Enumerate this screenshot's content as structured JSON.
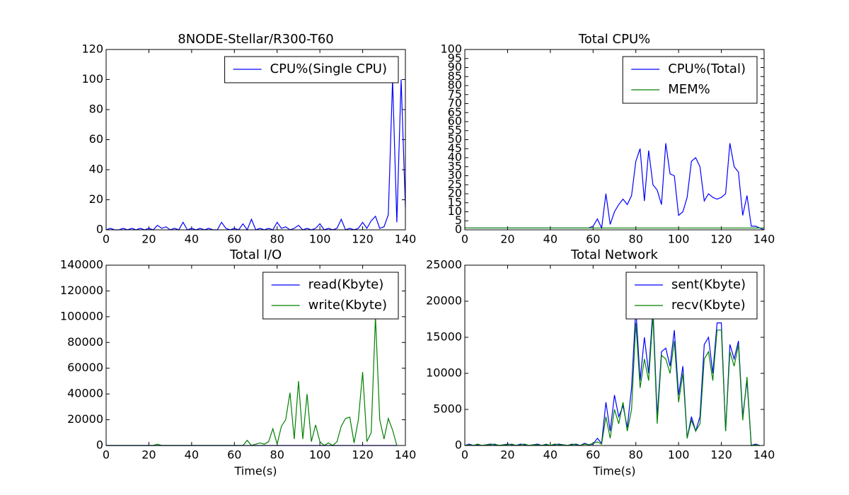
{
  "chart_data": [
    {
      "type": "line",
      "title": "8NODE-Stellar/R300-T60",
      "legend": "upper right",
      "x": [
        0,
        2,
        4,
        6,
        8,
        10,
        12,
        14,
        16,
        18,
        20,
        22,
        24,
        26,
        28,
        30,
        32,
        34,
        36,
        38,
        40,
        42,
        44,
        46,
        48,
        50,
        52,
        54,
        56,
        58,
        60,
        62,
        64,
        66,
        68,
        70,
        72,
        74,
        76,
        78,
        80,
        82,
        84,
        86,
        88,
        90,
        92,
        94,
        96,
        98,
        100,
        102,
        104,
        106,
        108,
        110,
        112,
        114,
        116,
        118,
        120,
        122,
        124,
        126,
        128,
        130,
        132,
        134,
        136,
        138,
        140
      ],
      "series": [
        {
          "name": "CPU%(Single CPU)",
          "color": "#0000ff",
          "values": [
            0,
            1,
            0,
            0,
            1,
            0,
            1,
            0,
            1,
            0,
            1,
            0,
            3,
            1,
            2,
            0,
            1,
            0,
            5,
            0,
            1,
            0,
            1,
            0,
            1,
            0,
            0,
            5,
            1,
            0,
            1,
            0,
            4,
            0,
            7,
            0,
            1,
            0,
            1,
            0,
            5,
            1,
            2,
            0,
            1,
            3,
            0,
            1,
            0,
            1,
            4,
            0,
            1,
            0,
            1,
            7,
            0,
            1,
            0,
            1,
            5,
            1,
            6,
            9,
            1,
            2,
            10,
            100,
            5,
            100,
            15
          ]
        }
      ],
      "xlim": [
        0,
        140
      ],
      "xticks": [
        0,
        20,
        40,
        60,
        80,
        100,
        120,
        140
      ],
      "ylim": [
        0,
        120
      ],
      "yticks": [
        0,
        20,
        40,
        60,
        80,
        100,
        120
      ]
    },
    {
      "type": "line",
      "title": "Total CPU%",
      "legend": "upper right",
      "x": [
        0,
        2,
        4,
        6,
        8,
        10,
        12,
        14,
        16,
        18,
        20,
        22,
        24,
        26,
        28,
        30,
        32,
        34,
        36,
        38,
        40,
        42,
        44,
        46,
        48,
        50,
        52,
        54,
        56,
        58,
        60,
        62,
        64,
        66,
        68,
        70,
        72,
        74,
        76,
        78,
        80,
        82,
        84,
        86,
        88,
        90,
        92,
        94,
        96,
        98,
        100,
        102,
        104,
        106,
        108,
        110,
        112,
        114,
        116,
        118,
        120,
        122,
        124,
        126,
        128,
        130,
        132,
        134,
        136,
        138,
        140
      ],
      "series": [
        {
          "name": "CPU%(Total)",
          "color": "#0000ff",
          "values": [
            1,
            1,
            1,
            1,
            1,
            1,
            1,
            1,
            1,
            1,
            1,
            1,
            1,
            1,
            1,
            1,
            1,
            1,
            1,
            1,
            1,
            1,
            1,
            1,
            1,
            1,
            1,
            1,
            1,
            1,
            2,
            6,
            1,
            20,
            3,
            10,
            14,
            17,
            14,
            19,
            38,
            45,
            16,
            44,
            25,
            22,
            14,
            48,
            31,
            30,
            8,
            10,
            18,
            38,
            40,
            35,
            16,
            20,
            18,
            17,
            18,
            20,
            48,
            35,
            32,
            8,
            19,
            2,
            2,
            1,
            0
          ]
        },
        {
          "name": "MEM%",
          "color": "#008000",
          "values": [
            1,
            1,
            1,
            1,
            1,
            1,
            1,
            1,
            1,
            1,
            1,
            1,
            1,
            1,
            1,
            1,
            1,
            1,
            1,
            1,
            1,
            1,
            1,
            1,
            1,
            1,
            1,
            1,
            1,
            1,
            1,
            1,
            1,
            1,
            1,
            1,
            1,
            1,
            1,
            1,
            1,
            1,
            1,
            1,
            1,
            1,
            1,
            1,
            1,
            1,
            1,
            1,
            1,
            1,
            1,
            1,
            1,
            1,
            1,
            1,
            1,
            1,
            1,
            1,
            1,
            1,
            1,
            1,
            1,
            1,
            1
          ]
        }
      ],
      "xlim": [
        0,
        140
      ],
      "xticks": [
        0,
        20,
        40,
        60,
        80,
        100,
        120,
        140
      ],
      "ylim": [
        0,
        100
      ],
      "yticks": [
        0,
        5,
        10,
        15,
        20,
        25,
        30,
        35,
        40,
        45,
        50,
        55,
        60,
        65,
        70,
        75,
        80,
        85,
        90,
        95,
        100
      ]
    },
    {
      "type": "line",
      "title": "Total I/O",
      "xlabel": "Time(s)",
      "legend": "upper right",
      "x": [
        0,
        2,
        4,
        6,
        8,
        10,
        12,
        14,
        16,
        18,
        20,
        22,
        24,
        26,
        28,
        30,
        32,
        34,
        36,
        38,
        40,
        42,
        44,
        46,
        48,
        50,
        52,
        54,
        56,
        58,
        60,
        62,
        64,
        66,
        68,
        70,
        72,
        74,
        76,
        78,
        80,
        82,
        84,
        86,
        88,
        90,
        92,
        94,
        96,
        98,
        100,
        102,
        104,
        106,
        108,
        110,
        112,
        114,
        116,
        118,
        120,
        122,
        124,
        126,
        128,
        130,
        132,
        134,
        136,
        138,
        140
      ],
      "series": [
        {
          "name": "read(Kbyte)",
          "color": "#0000ff",
          "values": [
            0,
            0,
            0,
            0,
            0,
            0,
            0,
            0,
            0,
            0,
            0,
            0,
            0,
            0,
            0,
            0,
            0,
            0,
            0,
            0,
            0,
            0,
            0,
            0,
            0,
            0,
            0,
            0,
            0,
            0,
            0,
            0,
            0,
            0,
            0,
            0,
            0,
            0,
            0,
            0,
            0,
            0,
            0,
            0,
            0,
            0,
            0,
            0,
            0,
            0,
            0,
            0,
            0,
            0,
            0,
            0,
            0,
            0,
            0,
            0,
            0,
            0,
            0,
            0,
            0,
            0,
            0,
            0,
            0,
            null,
            null
          ]
        },
        {
          "name": "write(Kbyte)",
          "color": "#008000",
          "values": [
            0,
            0,
            0,
            0,
            0,
            0,
            0,
            0,
            0,
            0,
            0,
            0,
            1000,
            0,
            0,
            0,
            0,
            0,
            0,
            0,
            0,
            0,
            0,
            0,
            0,
            0,
            0,
            0,
            0,
            0,
            0,
            0,
            0,
            4000,
            0,
            1000,
            2000,
            1000,
            3000,
            13000,
            1000,
            15000,
            20000,
            41000,
            5000,
            50000,
            5000,
            40000,
            3000,
            16000,
            3000,
            0,
            2000,
            0,
            3000,
            15000,
            21000,
            22000,
            2000,
            20000,
            57000,
            3000,
            10000,
            100000,
            20000,
            5000,
            21000,
            12000,
            0,
            null,
            null
          ]
        }
      ],
      "xlim": [
        0,
        140
      ],
      "xticks": [
        0,
        20,
        40,
        60,
        80,
        100,
        120,
        140
      ],
      "ylim": [
        0,
        140000
      ],
      "yticks": [
        0,
        20000,
        40000,
        60000,
        80000,
        100000,
        120000,
        140000
      ]
    },
    {
      "type": "line",
      "title": "Total Network",
      "xlabel": "Time(s)",
      "legend": "upper right",
      "x": [
        0,
        2,
        4,
        6,
        8,
        10,
        12,
        14,
        16,
        18,
        20,
        22,
        24,
        26,
        28,
        30,
        32,
        34,
        36,
        38,
        40,
        42,
        44,
        46,
        48,
        50,
        52,
        54,
        56,
        58,
        60,
        62,
        64,
        66,
        68,
        70,
        72,
        74,
        76,
        78,
        80,
        82,
        84,
        86,
        88,
        90,
        92,
        94,
        96,
        98,
        100,
        102,
        104,
        106,
        108,
        110,
        112,
        114,
        116,
        118,
        120,
        122,
        124,
        126,
        128,
        130,
        132,
        134,
        136,
        138,
        140
      ],
      "series": [
        {
          "name": "sent(Kbyte)",
          "color": "#0000ff",
          "values": [
            0,
            200,
            0,
            100,
            0,
            100,
            200,
            100,
            0,
            100,
            200,
            100,
            0,
            200,
            100,
            0,
            100,
            200,
            0,
            100,
            0,
            100,
            200,
            100,
            0,
            100,
            200,
            0,
            300,
            100,
            200,
            1000,
            300,
            6000,
            2000,
            7000,
            4000,
            5500,
            2500,
            8000,
            19000,
            9000,
            15000,
            10000,
            19000,
            4000,
            13000,
            13500,
            11000,
            16000,
            7000,
            11000,
            1000,
            4000,
            2000,
            4000,
            14000,
            15000,
            10000,
            17000,
            17000,
            2000,
            14000,
            12000,
            14500,
            4000,
            9000,
            0,
            200,
            0,
            null
          ]
        },
        {
          "name": "recv(Kbyte)",
          "color": "#008000",
          "values": [
            0,
            100,
            0,
            200,
            0,
            100,
            100,
            200,
            0,
            100,
            100,
            200,
            0,
            100,
            200,
            0,
            100,
            100,
            0,
            200,
            0,
            200,
            100,
            100,
            0,
            200,
            100,
            0,
            200,
            100,
            300,
            500,
            200,
            4000,
            1000,
            5000,
            3000,
            6000,
            2000,
            5000,
            17000,
            8000,
            12000,
            9000,
            18000,
            3000,
            12500,
            12000,
            10000,
            14500,
            6000,
            10000,
            1000,
            3500,
            2000,
            3000,
            12000,
            13000,
            9000,
            16000,
            16000,
            2000,
            13000,
            11000,
            14000,
            3500,
            9500,
            0,
            100,
            0,
            null
          ]
        }
      ],
      "xlim": [
        0,
        140
      ],
      "xticks": [
        0,
        20,
        40,
        60,
        80,
        100,
        120,
        140
      ],
      "ylim": [
        0,
        25000
      ],
      "yticks": [
        0,
        5000,
        10000,
        15000,
        20000,
        25000
      ]
    }
  ]
}
